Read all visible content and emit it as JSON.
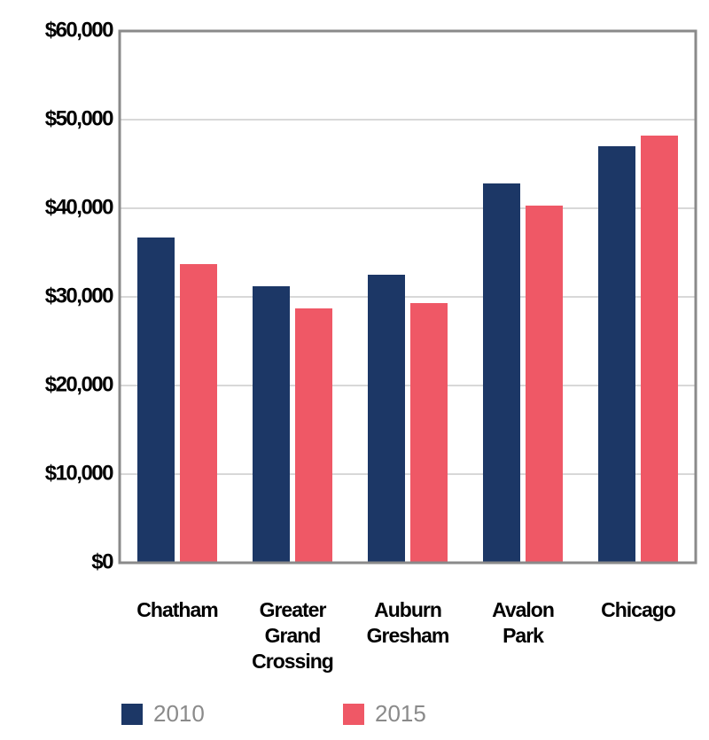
{
  "chart_data": {
    "type": "bar",
    "categories": [
      "Chatham",
      "Greater Grand Crossing",
      "Auburn Gresham",
      "Avalon Park",
      "Chicago"
    ],
    "series": [
      {
        "name": "2010",
        "color": "#1c3766",
        "values": [
          36700,
          31200,
          32500,
          42800,
          47000
        ]
      },
      {
        "name": "2015",
        "color": "#ef5866",
        "values": [
          33700,
          28700,
          29300,
          40300,
          48200
        ]
      }
    ],
    "ylim": [
      0,
      60000
    ],
    "yticks": [
      {
        "value": 0,
        "label": "$0"
      },
      {
        "value": 10000,
        "label": "$10,000"
      },
      {
        "value": 20000,
        "label": "$20,000"
      },
      {
        "value": 30000,
        "label": "$30,000"
      },
      {
        "value": 40000,
        "label": "$40,000"
      },
      {
        "value": 50000,
        "label": "$50,000"
      },
      {
        "value": 60000,
        "label": "$60,000"
      }
    ],
    "grid": true
  }
}
